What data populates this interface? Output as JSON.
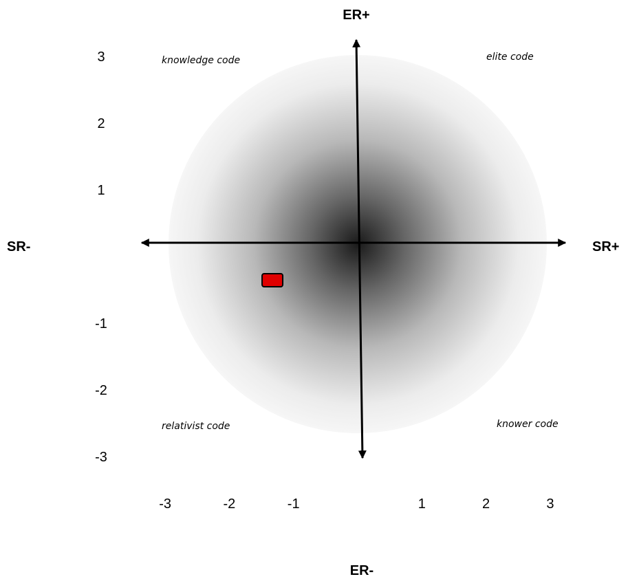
{
  "chart_data": {
    "type": "scatter",
    "axes": {
      "x_left": "SR-",
      "x_right": "SR+",
      "y_top": "ER+",
      "y_bottom": "ER-"
    },
    "x_ticks": [
      "-3",
      "-2",
      "-1",
      "1",
      "2",
      "3"
    ],
    "y_ticks": [
      "3",
      "2",
      "1",
      "-1",
      "-2",
      "-3"
    ],
    "xlim": [
      -3,
      3
    ],
    "ylim": [
      -3,
      3
    ],
    "quadrants": {
      "top_left": "knowledge code",
      "top_right": "elite code",
      "bottom_left": "relativist code",
      "bottom_right": "knower code"
    },
    "points": [
      {
        "x": -1.35,
        "y": -0.55,
        "color": "#e00000"
      }
    ],
    "background": "radial gradient, dark at origin fading to white"
  }
}
